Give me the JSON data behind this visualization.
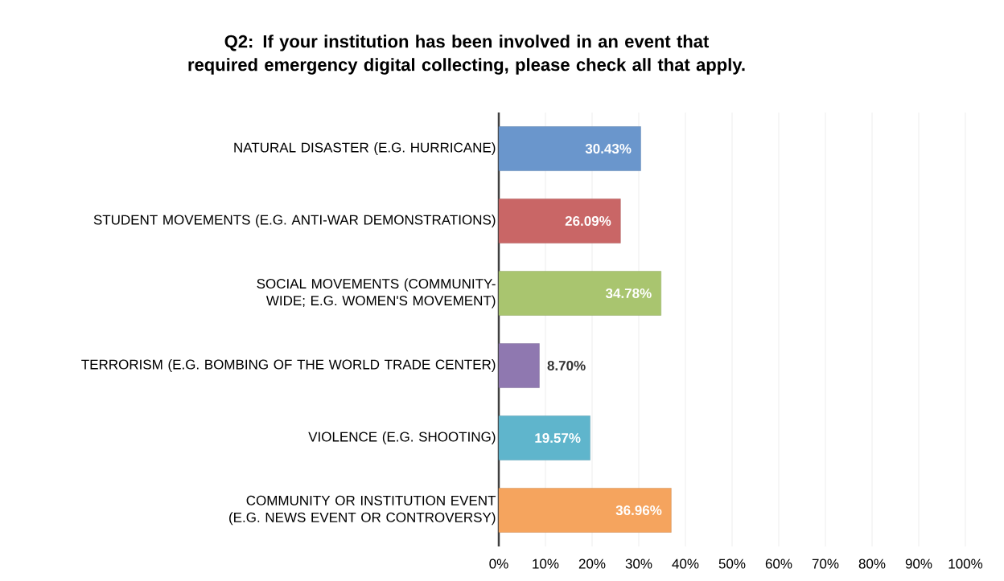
{
  "chart_data": {
    "type": "bar",
    "orientation": "horizontal",
    "title": "Q2: If your institution has been involved in an event that required emergency digital collecting, please check all that apply.",
    "categories": [
      "NATURAL DISASTER (E.G. HURRICANE)",
      "STUDENT MOVEMENTS (E.G. ANTI-WAR DEMONSTRATIONS)",
      "SOCIAL MOVEMENTS (COMMUNITY-WIDE; E.G. WOMEN'S MOVEMENT)",
      "TERRORISM (E.G. BOMBING OF THE WORLD TRADE CENTER)",
      "VIOLENCE (E.G. SHOOTING)",
      "COMMUNITY OR INSTITUTION EVENT (E.G. NEWS EVENT OR CONTROVERSY)"
    ],
    "values": [
      30.43,
      26.09,
      34.78,
      8.7,
      19.57,
      36.96
    ],
    "colors": [
      "#6a96cc",
      "#c96666",
      "#a9c56f",
      "#8f78b0",
      "#5fb5cc",
      "#f5a45e"
    ],
    "value_labels": [
      "30.43%",
      "26.09%",
      "34.78%",
      "8.70%",
      "19.57%",
      "36.96%"
    ],
    "xlim": [
      0,
      100
    ],
    "xticks": [
      {
        "value": 0,
        "label": "0%"
      },
      {
        "value": 10,
        "label": "10%"
      },
      {
        "value": 20,
        "label": "20%"
      },
      {
        "value": 30,
        "label": "30%"
      },
      {
        "value": 40,
        "label": "40%"
      },
      {
        "value": 50,
        "label": "50%"
      },
      {
        "value": 60,
        "label": "60%"
      },
      {
        "value": 70,
        "label": "70%"
      },
      {
        "value": 80,
        "label": "80%"
      },
      {
        "value": 90,
        "label": "90%"
      },
      {
        "value": 100,
        "label": "100%"
      }
    ],
    "grid": "x"
  }
}
